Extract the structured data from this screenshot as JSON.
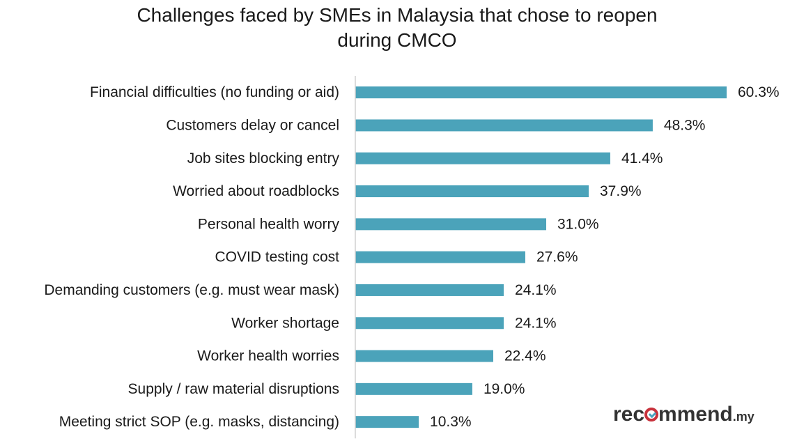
{
  "chart_data": {
    "type": "bar",
    "orientation": "horizontal",
    "title": "Challenges faced by SMEs in Malaysia that chose to reopen during CMCO",
    "title_lines": [
      "Challenges faced by SMEs in Malaysia that chose to reopen",
      "during CMCO"
    ],
    "categories": [
      "Financial difficulties (no funding or aid)",
      "Customers delay or cancel",
      "Job sites blocking entry",
      "Worried about roadblocks",
      "Personal health worry",
      "COVID testing cost",
      "Demanding customers (e.g. must wear mask)",
      "Worker shortage",
      "Worker health worries",
      "Supply / raw material disruptions",
      "Meeting strict SOP (e.g. masks, distancing)"
    ],
    "values": [
      60.3,
      48.3,
      41.4,
      37.9,
      31.0,
      27.6,
      24.1,
      24.1,
      22.4,
      19.0,
      10.3
    ],
    "value_labels": [
      "60.3%",
      "48.3%",
      "41.4%",
      "37.9%",
      "31.0%",
      "27.6%",
      "24.1%",
      "24.1%",
      "22.4%",
      "19.0%",
      "10.3%"
    ],
    "xlabel": "",
    "ylabel": "",
    "xlim": [
      0,
      60.3
    ],
    "grid": false,
    "legend": "none",
    "bar_color": "#4ba3ba",
    "axis_color": "#d0d0d0"
  },
  "logo": {
    "prefix": "rec",
    "middle": "mmend",
    "suffix": ".my",
    "ring_color": "#c8323c",
    "check_color": "#4aa3bf"
  }
}
